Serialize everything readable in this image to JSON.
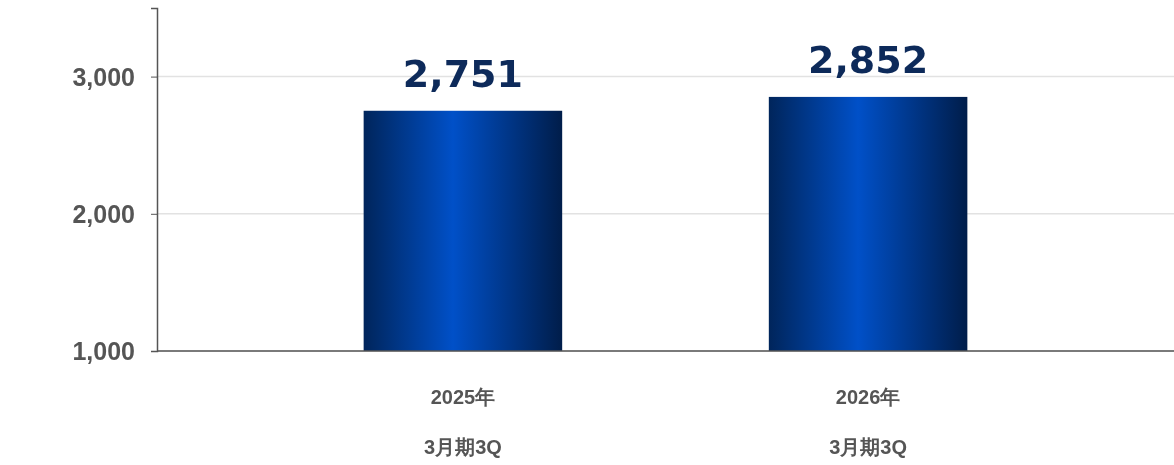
{
  "chart_data": {
    "type": "bar",
    "categories": [
      "2025年\n3月期3Q",
      "2026年\n3月期3Q"
    ],
    "values": [
      2751,
      2852
    ],
    "color": "#0050c8",
    "ylim": [
      1000,
      3500
    ],
    "yticks": [
      {
        "value": 1000,
        "label": "1,000"
      },
      {
        "value": 2000,
        "label": "2,000"
      },
      {
        "value": 3000,
        "label": "3,000"
      }
    ],
    "grid": "y",
    "value_labels": [
      "2,751",
      "2,852"
    ]
  }
}
